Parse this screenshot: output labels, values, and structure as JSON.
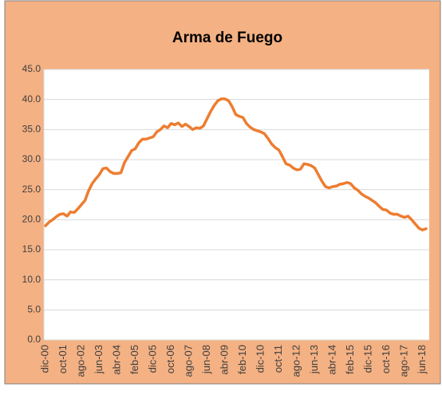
{
  "chart_data": {
    "type": "line",
    "title": "Arma de Fuego",
    "categories": [
      "dic-00",
      null,
      null,
      null,
      null,
      "oct-01",
      null,
      null,
      null,
      null,
      "ago-02",
      null,
      null,
      null,
      null,
      "jun-03",
      null,
      null,
      null,
      null,
      "abr-04",
      null,
      null,
      null,
      null,
      "feb-05",
      null,
      null,
      null,
      null,
      "dic-05",
      null,
      null,
      null,
      null,
      "oct-06",
      null,
      null,
      null,
      null,
      "ago-07",
      null,
      null,
      null,
      null,
      "jun-08",
      null,
      null,
      null,
      null,
      "abr-09",
      null,
      null,
      null,
      null,
      "feb-10",
      null,
      null,
      null,
      null,
      "dic-10",
      null,
      null,
      null,
      null,
      "oct-11",
      null,
      null,
      null,
      null,
      "ago-12",
      null,
      null,
      null,
      null,
      "jun-13",
      null,
      null,
      null,
      null,
      "abr-14",
      null,
      null,
      null,
      null,
      "feb-15",
      null,
      null,
      null,
      null,
      "dic-15",
      null,
      null,
      null,
      null,
      "oct-16",
      null,
      null,
      null,
      null,
      "ago-17",
      null,
      null,
      null,
      null,
      "jun-18",
      null
    ],
    "values": [
      19.0,
      19.6,
      20.0,
      20.5,
      20.9,
      21.0,
      20.6,
      21.3,
      21.2,
      21.8,
      22.5,
      23.2,
      24.8,
      26.0,
      26.8,
      27.5,
      28.5,
      28.6,
      28.0,
      27.7,
      27.7,
      27.8,
      29.5,
      30.5,
      31.5,
      31.8,
      32.8,
      33.4,
      33.4,
      33.6,
      33.8,
      34.6,
      35.0,
      35.6,
      35.3,
      36.0,
      35.8,
      36.1,
      35.5,
      35.9,
      35.5,
      35.0,
      35.3,
      35.2,
      35.6,
      36.8,
      38.0,
      39.0,
      39.8,
      40.1,
      40.1,
      39.8,
      38.8,
      37.5,
      37.2,
      37.0,
      36.0,
      35.4,
      35.0,
      34.8,
      34.6,
      34.3,
      33.5,
      32.6,
      32.0,
      31.6,
      30.5,
      29.3,
      29.1,
      28.6,
      28.3,
      28.4,
      29.3,
      29.2,
      29.0,
      28.6,
      27.5,
      26.4,
      25.5,
      25.3,
      25.5,
      25.6,
      25.9,
      26.0,
      26.2,
      26.0,
      25.3,
      24.9,
      24.3,
      23.9,
      23.6,
      23.2,
      22.8,
      22.2,
      21.7,
      21.6,
      21.1,
      20.9,
      20.9,
      20.6,
      20.4,
      20.6,
      20.0,
      19.3,
      18.6,
      18.3,
      18.5
    ],
    "color": "#ed7d31",
    "ylim": [
      0,
      45
    ],
    "yticks": [
      {
        "value": 0,
        "label": "0.0"
      },
      {
        "value": 5,
        "label": "5.0"
      },
      {
        "value": 10,
        "label": "10.0"
      },
      {
        "value": 15,
        "label": "15.0"
      },
      {
        "value": 20,
        "label": "20.0"
      },
      {
        "value": 25,
        "label": "25.0"
      },
      {
        "value": 30,
        "label": "30.0"
      },
      {
        "value": 35,
        "label": "35.0"
      },
      {
        "value": 40,
        "label": "40.0"
      },
      {
        "value": 45,
        "label": "45.0"
      }
    ],
    "grid": true
  }
}
